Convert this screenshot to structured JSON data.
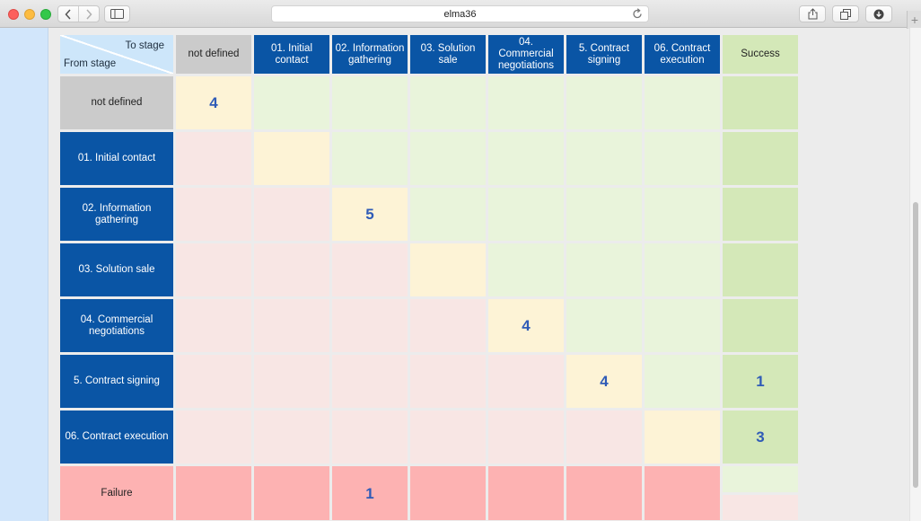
{
  "browser": {
    "url": "elma36",
    "icons": [
      "back-icon",
      "forward-icon",
      "sidebar-icon",
      "reload-icon",
      "share-icon",
      "tabs-icon",
      "download-icon",
      "plus-icon"
    ],
    "new_tab_symbol": "+"
  },
  "matrix": {
    "corner": {
      "to_label": "To stage",
      "from_label": "From stage"
    },
    "columns": [
      "not defined",
      "01. Initial contact",
      "02. Information gathering",
      "03. Solution sale",
      "04. Commercial negotiations",
      "5. Contract signing",
      "06. Contract execution"
    ],
    "success_label": "Success",
    "rows": [
      {
        "label": "not defined",
        "cells": [
          "4",
          "",
          "",
          "",
          "",
          "",
          ""
        ],
        "success": ""
      },
      {
        "label": "01. Initial contact",
        "cells": [
          "",
          "",
          "",
          "",
          "",
          "",
          ""
        ],
        "success": ""
      },
      {
        "label": "02. Information gathering",
        "cells": [
          "",
          "",
          "5",
          "",
          "",
          "",
          ""
        ],
        "success": ""
      },
      {
        "label": "03. Solution sale",
        "cells": [
          "",
          "",
          "",
          "",
          "",
          "",
          ""
        ],
        "success": ""
      },
      {
        "label": "04. Commercial negotiations",
        "cells": [
          "",
          "",
          "",
          "",
          "4",
          "",
          ""
        ],
        "success": ""
      },
      {
        "label": "5. Contract signing",
        "cells": [
          "",
          "",
          "",
          "",
          "",
          "4",
          ""
        ],
        "success": "1"
      },
      {
        "label": "06. Contract execution",
        "cells": [
          "",
          "",
          "",
          "",
          "",
          "",
          ""
        ],
        "success": "3"
      }
    ],
    "failure": {
      "label": "Failure",
      "cells": [
        "",
        "",
        "1",
        "",
        "",
        "",
        ""
      ]
    }
  },
  "colors": {
    "header_blue": "#0a55a5",
    "header_gray": "#cbcbcb",
    "success_green": "#d4e8b8",
    "failure_red": "#fdb2b2",
    "diagonal_yellow": "#fdf3d6",
    "forward_green": "#e9f4db",
    "backward_pink": "#f8e6e4",
    "count_blue": "#2f5bb7"
  }
}
